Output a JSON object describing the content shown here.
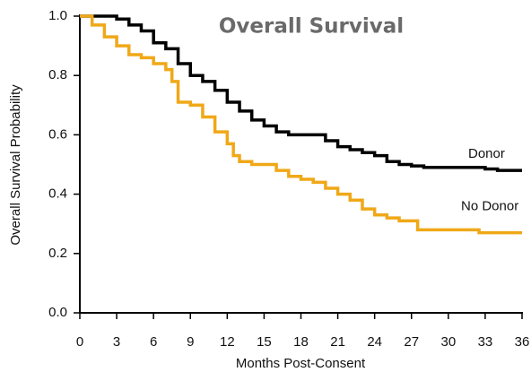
{
  "chart_data": {
    "type": "line",
    "step": "post",
    "title": "Overall Survival",
    "x_label": "Months Post-Consent",
    "y_label": "Overall Survival Probability",
    "xlim": [
      0,
      36
    ],
    "ylim": [
      0,
      1
    ],
    "xticks": [
      0,
      3,
      6,
      9,
      12,
      15,
      18,
      21,
      24,
      27,
      30,
      33,
      36
    ],
    "yticks": [
      {
        "value": 0,
        "label": "0.0"
      },
      0.2,
      0.4,
      0.6,
      0.8,
      {
        "value": 1,
        "label": "1.0"
      }
    ],
    "grid": false,
    "series": [
      {
        "name": "Donor",
        "color": "#000000",
        "x": [
          0,
          3,
          4,
          5,
          6,
          7,
          8,
          9,
          10,
          11,
          12,
          13,
          14,
          15,
          16,
          17,
          19,
          20,
          21,
          22,
          23,
          24,
          25,
          26,
          27,
          28,
          32,
          33,
          34,
          36
        ],
        "values": [
          1.0,
          0.99,
          0.97,
          0.95,
          0.91,
          0.89,
          0.84,
          0.8,
          0.78,
          0.75,
          0.71,
          0.68,
          0.65,
          0.63,
          0.61,
          0.6,
          0.6,
          0.58,
          0.56,
          0.55,
          0.54,
          0.53,
          0.51,
          0.5,
          0.495,
          0.49,
          0.49,
          0.485,
          0.48,
          0.48
        ]
      },
      {
        "name": "No Donor",
        "color": "#f0a818",
        "x": [
          0,
          1,
          2,
          3,
          4,
          5,
          6,
          7,
          7.5,
          8,
          9,
          10,
          11,
          12,
          12.5,
          13,
          14,
          16,
          17,
          18,
          19,
          20,
          21,
          22,
          23,
          24,
          25,
          26,
          27.5,
          32,
          32.5,
          36
        ],
        "values": [
          1.0,
          0.97,
          0.93,
          0.9,
          0.87,
          0.86,
          0.84,
          0.82,
          0.78,
          0.71,
          0.7,
          0.66,
          0.61,
          0.57,
          0.53,
          0.51,
          0.5,
          0.48,
          0.46,
          0.45,
          0.44,
          0.42,
          0.4,
          0.38,
          0.35,
          0.33,
          0.32,
          0.31,
          0.28,
          0.28,
          0.27,
          0.27
        ]
      }
    ]
  }
}
